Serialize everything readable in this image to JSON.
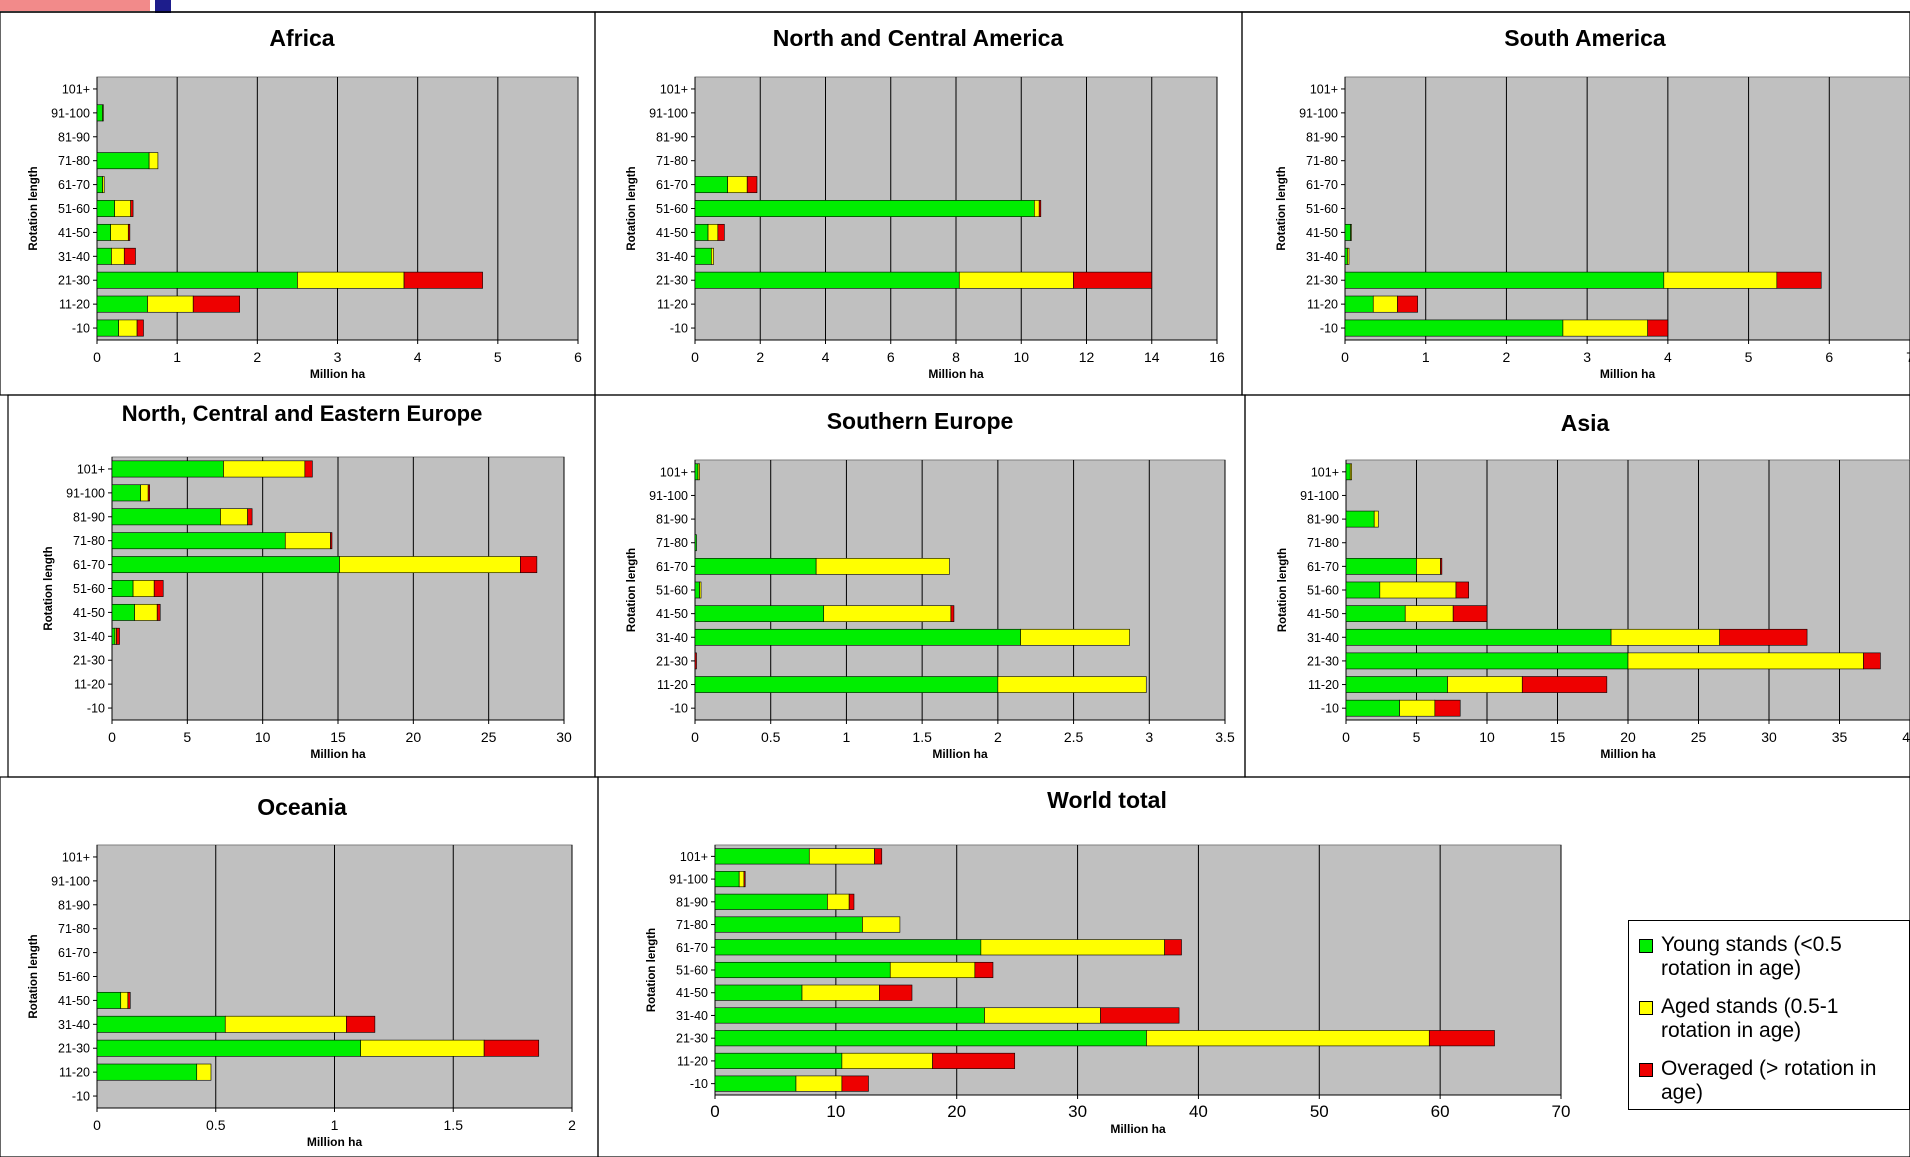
{
  "colors": {
    "young": "#00ee00",
    "aged": "#ffff00",
    "overaged": "#ee0000",
    "plot_bg": "#c0c0c0",
    "frame": "#000000",
    "header_accent": "#1d1d8c",
    "header_pink": "#f06060"
  },
  "legend": {
    "young": "Young stands (<0.5 rotation in age)",
    "aged": "Aged stands (0.5-1 rotation in age)",
    "overaged": "Overaged (> rotation in age)"
  },
  "chart_data": [
    {
      "type": "bar",
      "orientation": "horizontal",
      "stacked": true,
      "title": "Africa",
      "xlabel": "Million ha",
      "ylabel": "Rotation length",
      "xlim": [
        0,
        6
      ],
      "xticks": [
        0,
        1,
        2,
        3,
        4,
        5,
        6
      ],
      "grid": true,
      "categories": [
        "-10",
        "11-20",
        "21-30",
        "31-40",
        "41-50",
        "51-60",
        "61-70",
        "71-80",
        "81-90",
        "91-100",
        "101+"
      ],
      "series": [
        {
          "name": "Young stands (<0.5 rotation in age)",
          "values": [
            0.27,
            0.63,
            2.5,
            0.18,
            0.17,
            0.22,
            0.07,
            0.65,
            0,
            0.07,
            0
          ]
        },
        {
          "name": "Aged stands (0.5-1 rotation in age)",
          "values": [
            0.23,
            0.57,
            1.33,
            0.16,
            0.22,
            0.2,
            0.02,
            0.11,
            0,
            0.01,
            0
          ]
        },
        {
          "name": "Overaged (> rotation in age)",
          "values": [
            0.08,
            0.58,
            0.98,
            0.14,
            0.02,
            0.03,
            0,
            0,
            0,
            0,
            0
          ]
        }
      ]
    },
    {
      "type": "bar",
      "orientation": "horizontal",
      "stacked": true,
      "title": "North and Central America",
      "xlabel": "Million ha",
      "ylabel": "Rotation length",
      "xlim": [
        0,
        16
      ],
      "xticks": [
        0,
        2,
        4,
        6,
        8,
        10,
        12,
        14,
        16
      ],
      "grid": true,
      "categories": [
        "-10",
        "11-20",
        "21-30",
        "31-40",
        "41-50",
        "51-60",
        "61-70",
        "71-80",
        "81-90",
        "91-100",
        "101+"
      ],
      "series": [
        {
          "name": "Young stands (<0.5 rotation in age)",
          "values": [
            0,
            0,
            8.1,
            0.5,
            0.4,
            10.4,
            1.0,
            0,
            0,
            0,
            0
          ]
        },
        {
          "name": "Aged stands (0.5-1 rotation in age)",
          "values": [
            0,
            0,
            3.5,
            0.07,
            0.3,
            0.15,
            0.6,
            0,
            0,
            0,
            0
          ]
        },
        {
          "name": "Overaged (> rotation in age)",
          "values": [
            0,
            0,
            2.4,
            0,
            0.2,
            0.05,
            0.3,
            0,
            0,
            0,
            0
          ]
        }
      ]
    },
    {
      "type": "bar",
      "orientation": "horizontal",
      "stacked": true,
      "title": "South America",
      "xlabel": "Million ha",
      "ylabel": "Rotation length",
      "xlim": [
        0,
        7
      ],
      "xticks": [
        0,
        1,
        2,
        3,
        4,
        5,
        6,
        7
      ],
      "grid": true,
      "categories": [
        "-10",
        "11-20",
        "21-30",
        "31-40",
        "41-50",
        "51-60",
        "61-70",
        "71-80",
        "81-90",
        "91-100",
        "101+"
      ],
      "series": [
        {
          "name": "Young stands (<0.5 rotation in age)",
          "values": [
            2.7,
            0.35,
            3.95,
            0.03,
            0.07,
            0,
            0,
            0,
            0,
            0,
            0
          ]
        },
        {
          "name": "Aged stands (0.5-1 rotation in age)",
          "values": [
            1.05,
            0.3,
            1.4,
            0.02,
            0.01,
            0,
            0,
            0,
            0,
            0,
            0
          ]
        },
        {
          "name": "Overaged (> rotation in age)",
          "values": [
            0.25,
            0.25,
            0.55,
            0,
            0,
            0,
            0,
            0,
            0,
            0,
            0
          ]
        }
      ]
    },
    {
      "type": "bar",
      "orientation": "horizontal",
      "stacked": true,
      "title": "North, Central and Eastern Europe",
      "xlabel": "Million ha",
      "ylabel": "Rotation length",
      "xlim": [
        0,
        30
      ],
      "xticks": [
        0,
        5,
        10,
        15,
        20,
        25,
        30
      ],
      "grid": true,
      "categories": [
        "-10",
        "11-20",
        "21-30",
        "31-40",
        "41-50",
        "51-60",
        "61-70",
        "71-80",
        "81-90",
        "91-100",
        "101+"
      ],
      "series": [
        {
          "name": "Young stands (<0.5 rotation in age)",
          "values": [
            0,
            0,
            0,
            0.2,
            1.5,
            1.4,
            15.1,
            11.5,
            7.2,
            1.9,
            7.4
          ]
        },
        {
          "name": "Aged stands (0.5-1 rotation in age)",
          "values": [
            0,
            0,
            0,
            0.1,
            1.5,
            1.4,
            12.0,
            3.0,
            1.8,
            0.5,
            5.4
          ]
        },
        {
          "name": "Overaged (> rotation in age)",
          "values": [
            0,
            0,
            0,
            0.2,
            0.2,
            0.6,
            1.1,
            0.1,
            0.3,
            0.1,
            0.5
          ]
        }
      ]
    },
    {
      "type": "bar",
      "orientation": "horizontal",
      "stacked": true,
      "title": "Southern Europe",
      "xlabel": "Million ha",
      "ylabel": "Rotation length",
      "xlim": [
        0,
        3.5
      ],
      "xticks": [
        0,
        0.5,
        1,
        1.5,
        2,
        2.5,
        3,
        3.5
      ],
      "grid": true,
      "categories": [
        "-10",
        "11-20",
        "21-30",
        "31-40",
        "41-50",
        "51-60",
        "61-70",
        "71-80",
        "81-90",
        "91-100",
        "101+"
      ],
      "series": [
        {
          "name": "Young stands (<0.5 rotation in age)",
          "values": [
            0,
            2.0,
            0,
            2.15,
            0.85,
            0.03,
            0.8,
            0.01,
            0,
            0,
            0.02
          ]
        },
        {
          "name": "Aged stands (0.5-1 rotation in age)",
          "values": [
            0,
            0.98,
            0,
            0.72,
            0.84,
            0.01,
            0.88,
            0,
            0,
            0,
            0.01
          ]
        },
        {
          "name": "Overaged (> rotation in age)",
          "values": [
            0,
            0,
            0.01,
            0,
            0.02,
            0,
            0,
            0,
            0,
            0,
            0
          ]
        }
      ]
    },
    {
      "type": "bar",
      "orientation": "horizontal",
      "stacked": true,
      "title": "Asia",
      "xlabel": "Million ha",
      "ylabel": "Rotation length",
      "xlim": [
        0,
        40
      ],
      "xticks": [
        0,
        5,
        10,
        15,
        20,
        25,
        30,
        35,
        40
      ],
      "grid": true,
      "categories": [
        "-10",
        "11-20",
        "21-30",
        "31-40",
        "41-50",
        "51-60",
        "61-70",
        "71-80",
        "81-90",
        "91-100",
        "101+"
      ],
      "series": [
        {
          "name": "Young stands (<0.5 rotation in age)",
          "values": [
            3.8,
            7.2,
            20.0,
            18.8,
            4.2,
            2.4,
            5.0,
            0,
            2.0,
            0,
            0.3
          ]
        },
        {
          "name": "Aged stands (0.5-1 rotation in age)",
          "values": [
            2.5,
            5.3,
            16.7,
            7.7,
            3.4,
            5.4,
            1.7,
            0,
            0.3,
            0,
            0.1
          ]
        },
        {
          "name": "Overaged (> rotation in age)",
          "values": [
            1.8,
            6.0,
            1.2,
            6.2,
            2.4,
            0.9,
            0.1,
            0,
            0,
            0,
            0
          ]
        }
      ]
    },
    {
      "type": "bar",
      "orientation": "horizontal",
      "stacked": true,
      "title": "Oceania",
      "xlabel": "Million ha",
      "ylabel": "Rotation length",
      "xlim": [
        0,
        2
      ],
      "xticks": [
        0,
        0.5,
        1,
        1.5,
        2
      ],
      "grid": true,
      "categories": [
        "-10",
        "11-20",
        "21-30",
        "31-40",
        "41-50",
        "51-60",
        "61-70",
        "71-80",
        "81-90",
        "91-100",
        "101+"
      ],
      "series": [
        {
          "name": "Young stands (<0.5 rotation in age)",
          "values": [
            0,
            0.42,
            1.11,
            0.54,
            0.1,
            0,
            0,
            0,
            0,
            0,
            0
          ]
        },
        {
          "name": "Aged stands (0.5-1 rotation in age)",
          "values": [
            0,
            0.06,
            0.52,
            0.51,
            0.03,
            0,
            0,
            0,
            0,
            0,
            0
          ]
        },
        {
          "name": "Overaged (> rotation in age)",
          "values": [
            0,
            0,
            0.23,
            0.12,
            0.01,
            0,
            0,
            0,
            0,
            0,
            0
          ]
        }
      ]
    },
    {
      "type": "bar",
      "orientation": "horizontal",
      "stacked": true,
      "title": "World total",
      "xlabel": "Million ha",
      "ylabel": "Rotation length",
      "xlim": [
        0,
        70
      ],
      "xticks": [
        0,
        10,
        20,
        30,
        40,
        50,
        60,
        70
      ],
      "grid": true,
      "categories": [
        "-10",
        "11-20",
        "21-30",
        "31-40",
        "41-50",
        "51-60",
        "61-70",
        "71-80",
        "81-90",
        "91-100",
        "101+"
      ],
      "series": [
        {
          "name": "Young stands (<0.5 rotation in age)",
          "values": [
            6.7,
            10.5,
            35.7,
            22.3,
            7.2,
            14.5,
            22.0,
            12.2,
            9.3,
            2.0,
            7.8
          ]
        },
        {
          "name": "Aged stands (0.5-1 rotation in age)",
          "values": [
            3.8,
            7.5,
            23.4,
            9.6,
            6.4,
            7.0,
            15.2,
            3.1,
            1.8,
            0.4,
            5.4
          ]
        },
        {
          "name": "Overaged (> rotation in age)",
          "values": [
            2.2,
            6.8,
            5.4,
            6.5,
            2.7,
            1.5,
            1.4,
            0,
            0.4,
            0.1,
            0.6
          ]
        }
      ]
    }
  ]
}
